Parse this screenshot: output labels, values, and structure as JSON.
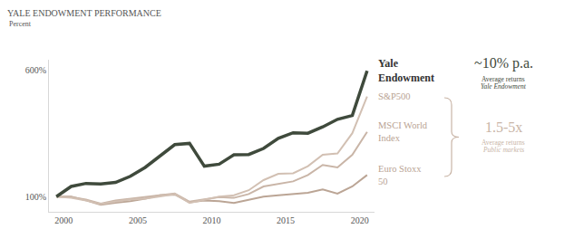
{
  "chart_data": {
    "type": "line",
    "title": "YALE ENDOWMENT PERFORMANCE",
    "subtitle": "Percent",
    "x": [
      1999.5,
      2000.5,
      2001.5,
      2002.5,
      2003.5,
      2004.5,
      2005.5,
      2006.5,
      2007.5,
      2008.5,
      2009.5,
      2010.5,
      2011.5,
      2012.5,
      2013.5,
      2014.5,
      2015.5,
      2016.5,
      2017.5,
      2018.5,
      2019.5,
      2020.5
    ],
    "series": [
      {
        "name": "Yale Endowment",
        "color": "#3f4a3c",
        "values": [
          100,
          140,
          152,
          150,
          156,
          180,
          215,
          262,
          305,
          310,
          220,
          228,
          265,
          266,
          290,
          330,
          352,
          350,
          375,
          405,
          420,
          596
        ]
      },
      {
        "name": "S&P500",
        "color": "#d2c0b3",
        "values": [
          100,
          95,
          85,
          70,
          80,
          88,
          92,
          100,
          110,
          75,
          88,
          100,
          105,
          125,
          165,
          190,
          192,
          220,
          265,
          270,
          350,
          495
        ]
      },
      {
        "name": "MSCI World Index",
        "color": "#c9b5a7",
        "values": [
          100,
          98,
          88,
          72,
          85,
          92,
          98,
          105,
          112,
          80,
          88,
          98,
          95,
          110,
          140,
          150,
          160,
          185,
          225,
          215,
          265,
          355
        ]
      },
      {
        "name": "Euro Stoxx 50",
        "color": "#bba595",
        "values": [
          100,
          100,
          85,
          68,
          76,
          82,
          92,
          105,
          108,
          78,
          85,
          82,
          75,
          88,
          100,
          105,
          110,
          115,
          128,
          112,
          140,
          185
        ]
      }
    ],
    "xlim": [
      1999,
      2021
    ],
    "xticks": [
      2000,
      2005,
      2010,
      2015,
      2020
    ],
    "ylim": [
      40,
      640
    ],
    "yticks": [
      {
        "value": 100,
        "label": "100%"
      },
      {
        "value": 600,
        "label": "600%"
      }
    ],
    "grid": false,
    "annotations": [
      {
        "headline": "~10% p.a.",
        "lines": [
          "Average returns",
          "Yale Endowment"
        ],
        "color": "#3f4a3c"
      },
      {
        "headline": "1.5-5x",
        "lines": [
          "Average returns",
          "Public markets"
        ],
        "color": "#c9b5a7"
      }
    ]
  }
}
